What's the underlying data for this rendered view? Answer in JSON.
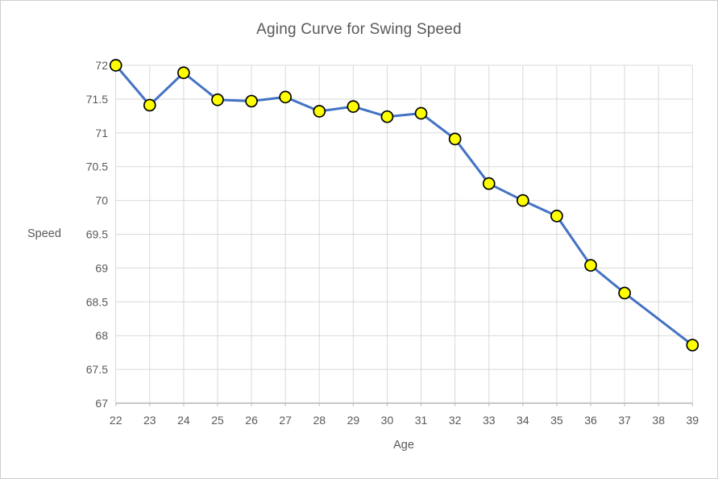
{
  "window": {
    "background": "#FFFFFF",
    "border_color": "#D0CECE"
  },
  "chart_data": {
    "type": "line",
    "title": "Aging Curve for Swing Speed",
    "xlabel": "Age",
    "ylabel": "Speed",
    "x": [
      22,
      23,
      24,
      25,
      26,
      27,
      28,
      29,
      30,
      31,
      32,
      33,
      34,
      35,
      36,
      37,
      38,
      39
    ],
    "series": [
      {
        "name": "Swing Speed",
        "values": [
          72.0,
          71.41,
          71.89,
          71.49,
          71.47,
          71.53,
          71.32,
          71.39,
          71.24,
          71.29,
          70.91,
          70.25,
          70.0,
          69.77,
          69.04,
          68.63,
          null,
          67.86
        ]
      }
    ],
    "ylim": [
      67,
      72
    ],
    "yticks": [
      67,
      67.5,
      68,
      68.5,
      69,
      69.5,
      70,
      70.5,
      71,
      71.5,
      72
    ],
    "ytick_labels": [
      "67",
      "67.5",
      "68",
      "68.5",
      "69",
      "69.5",
      "70",
      "70.5",
      "71",
      "71.5",
      "72"
    ],
    "xtick_labels": [
      "22",
      "23",
      "24",
      "25",
      "26",
      "27",
      "28",
      "29",
      "30",
      "31",
      "32",
      "33",
      "34",
      "35",
      "36",
      "37",
      "38",
      "39"
    ],
    "grid": true,
    "legend": "none",
    "colors": {
      "line": "#4472C4",
      "marker_fill": "#FFFF00",
      "marker_border": "#000000",
      "gridline": "#D9D9D9",
      "axis_line": "#BFBFBF",
      "text": "#595959"
    }
  }
}
